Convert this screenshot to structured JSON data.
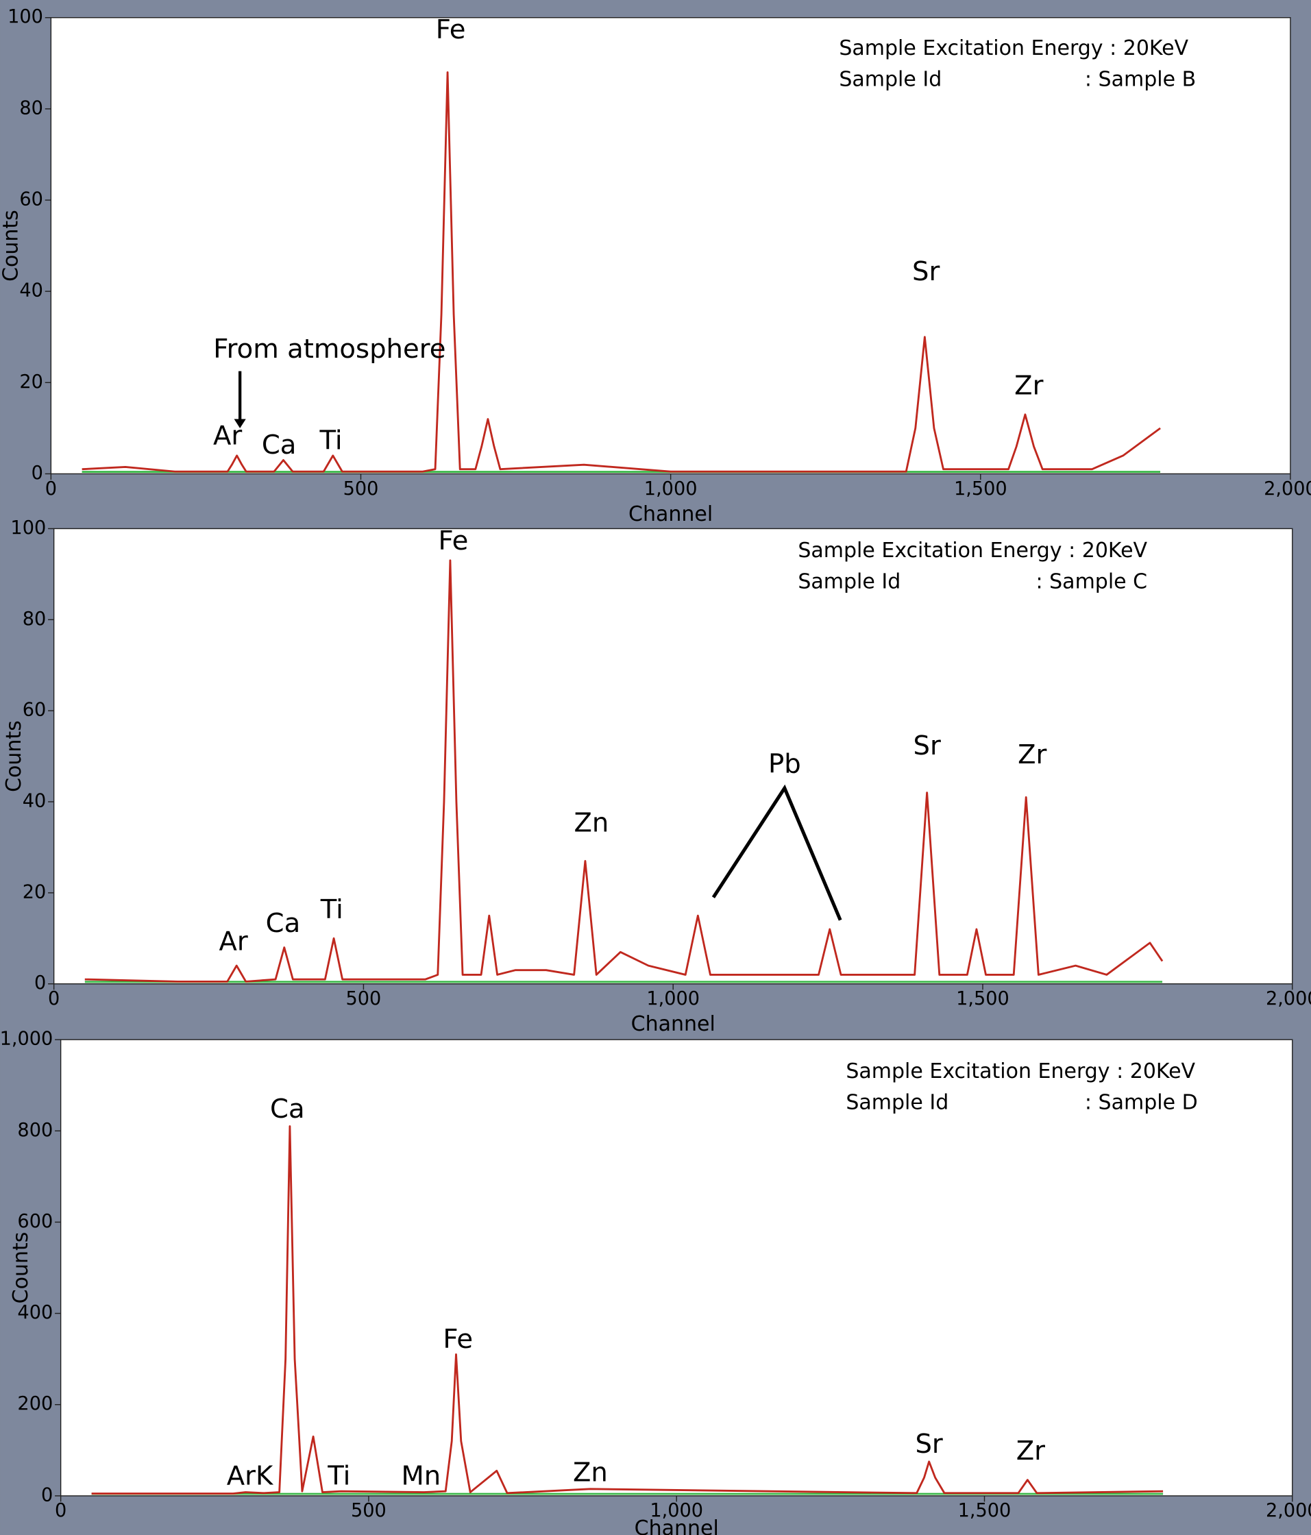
{
  "chart_data": [
    {
      "type": "line",
      "info": "Sample Excitation Energy : 20KeV",
      "id_label": "Sample Id",
      "id_value": ": Sample B",
      "xlabel": "Channel",
      "ylabel": "Counts",
      "annotations": [
        "Fe",
        "Sr",
        "Zr",
        "Ar",
        "Ca",
        "Ti",
        "From atmosphere"
      ],
      "xlim": [
        0,
        2000
      ],
      "xticks": [
        0,
        500,
        {
          "value": 1000,
          "label": "1,000"
        },
        {
          "value": 1500,
          "label": "1,500"
        },
        {
          "value": 2000,
          "label": "2,000"
        }
      ],
      "ylim": [
        0,
        100
      ],
      "yticks": [
        0,
        20,
        40,
        60,
        80,
        100
      ],
      "color": "#c0281e",
      "x": [
        50,
        120,
        200,
        285,
        292,
        300,
        308,
        315,
        360,
        375,
        390,
        440,
        455,
        470,
        600,
        620,
        630,
        640,
        650,
        660,
        685,
        695,
        705,
        715,
        725,
        860,
        1000,
        1200,
        1380,
        1395,
        1410,
        1425,
        1440,
        1545,
        1558,
        1572,
        1586,
        1600,
        1680,
        1730,
        1790
      ],
      "values": [
        1,
        1.5,
        0.5,
        0.5,
        2,
        4,
        2,
        0.5,
        0.5,
        3,
        0.5,
        0.5,
        4,
        0.5,
        0.5,
        1,
        35,
        88,
        35,
        1,
        1,
        6,
        12,
        6,
        1,
        2,
        0.5,
        0.5,
        0.5,
        10,
        30,
        10,
        1,
        1,
        6,
        13,
        6,
        1,
        1,
        4,
        10
      ]
    },
    {
      "type": "line",
      "info": "Sample Excitation Energy : 20KeV",
      "id_label": "Sample Id",
      "id_value": ": Sample C",
      "xlabel": "Channel",
      "ylabel": "Counts",
      "annotations": [
        "Fe",
        "Zn",
        "Pb",
        "Sr",
        "Zr",
        "Ar",
        "Ca",
        "Ti"
      ],
      "xlim": [
        0,
        2000
      ],
      "xticks": [
        0,
        500,
        {
          "value": 1000,
          "label": "1,000"
        },
        {
          "value": 1500,
          "label": "1,500"
        },
        {
          "value": 2000,
          "label": "2,000"
        }
      ],
      "ylim": [
        0,
        100
      ],
      "yticks": [
        0,
        20,
        40,
        60,
        80,
        100
      ],
      "color": "#c0281e",
      "x": [
        50,
        200,
        280,
        295,
        310,
        358,
        372,
        386,
        438,
        452,
        466,
        600,
        620,
        630,
        640,
        650,
        660,
        690,
        703,
        716,
        745,
        795,
        840,
        858,
        876,
        915,
        960,
        1020,
        1040,
        1060,
        1235,
        1253,
        1271,
        1390,
        1410,
        1430,
        1475,
        1490,
        1505,
        1550,
        1570,
        1590,
        1650,
        1700,
        1770,
        1790
      ],
      "values": [
        1,
        0.5,
        0.5,
        4,
        0.5,
        1,
        8,
        1,
        1,
        10,
        1,
        1,
        2,
        40,
        93,
        40,
        2,
        2,
        15,
        2,
        3,
        3,
        2,
        27,
        2,
        7,
        4,
        2,
        15,
        2,
        2,
        12,
        2,
        2,
        42,
        2,
        2,
        12,
        2,
        2,
        41,
        2,
        4,
        2,
        9,
        5
      ]
    },
    {
      "type": "line",
      "info": "Sample Excitation Energy : 20KeV",
      "id_label": "Sample Id",
      "id_value": ": Sample D",
      "xlabel": "Channel",
      "ylabel": "Counts",
      "annotations": [
        "Ca",
        "Fe",
        "ArK",
        "Ti",
        "Mn",
        "Zn",
        "Sr",
        "Zr"
      ],
      "xlim": [
        0,
        2000
      ],
      "xticks": [
        0,
        500,
        {
          "value": 1000,
          "label": "1,000"
        },
        {
          "value": 1500,
          "label": "1,500"
        },
        {
          "value": 2000,
          "label": "2,000"
        }
      ],
      "ylim": [
        0,
        1000
      ],
      "yticks": [
        0,
        200,
        400,
        600,
        800,
        {
          "value": 1000,
          "label": "1,000"
        }
      ],
      "color": "#c0281e",
      "x": [
        50,
        280,
        300,
        330,
        355,
        365,
        372,
        380,
        392,
        410,
        425,
        455,
        590,
        625,
        635,
        642,
        650,
        665,
        708,
        725,
        860,
        1390,
        1402,
        1410,
        1420,
        1435,
        1555,
        1570,
        1585,
        1790
      ],
      "values": [
        5,
        5,
        8,
        6,
        8,
        300,
        810,
        300,
        10,
        130,
        8,
        10,
        8,
        10,
        120,
        310,
        120,
        8,
        55,
        6,
        15,
        6,
        40,
        75,
        40,
        6,
        6,
        35,
        6,
        10
      ]
    }
  ]
}
